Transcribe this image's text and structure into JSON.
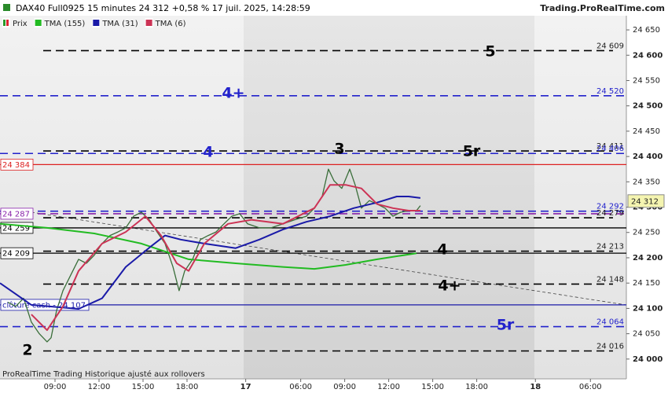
{
  "chart_data": {
    "type": "line",
    "title": "DAX40 Full0925 15 minutes 24 312 +0,58 % 17 juil. 2025, 14:28:59",
    "source": "Trading.ProRealTime.com",
    "footer": "ProRealTime Trading  Historique ajusté aux rollovers",
    "xlim": [
      5.25,
      47.95
    ],
    "ylim": [
      23964,
      24678
    ],
    "xticks": [
      {
        "value": 9,
        "label": "09:00"
      },
      {
        "value": 12,
        "label": "12:00"
      },
      {
        "value": 15,
        "label": "15:00"
      },
      {
        "value": 18,
        "label": "18:00"
      },
      {
        "value": 22,
        "label": "17"
      },
      {
        "value": 25.75,
        "label": "06:00"
      },
      {
        "value": 28.75,
        "label": "09:00"
      },
      {
        "value": 31.75,
        "label": "12:00"
      },
      {
        "value": 34.75,
        "label": "15:00"
      },
      {
        "value": 37.75,
        "label": "18:00"
      },
      {
        "value": 41.75,
        "label": "18"
      },
      {
        "value": 45.5,
        "label": "06:00"
      }
    ],
    "yticks": [
      {
        "value": 24000,
        "label": "24 000"
      },
      {
        "value": 24050,
        "label": "24 050"
      },
      {
        "value": 24100,
        "label": "24 100"
      },
      {
        "value": 24150,
        "label": "24 150"
      },
      {
        "value": 24200,
        "label": "24 200"
      },
      {
        "value": 24250,
        "label": "24 250"
      },
      {
        "value": 24300,
        "label": "24 300"
      },
      {
        "value": 24350,
        "label": "24 350"
      },
      {
        "value": 24400,
        "label": "24 400"
      },
      {
        "value": 24450,
        "label": "24 450"
      },
      {
        "value": 24500,
        "label": "24 500"
      },
      {
        "value": 24550,
        "label": "24 550"
      },
      {
        "value": 24600,
        "label": "24 600"
      },
      {
        "value": 24650,
        "label": "24 650"
      }
    ],
    "series": [
      {
        "name": "Prix",
        "color": "#3a6e3a",
        "x": [
          5.79,
          6.32,
          6.86,
          7.39,
          7.93,
          8.46,
          8.73,
          9.11,
          9.54,
          10.07,
          10.61,
          11.14,
          11.68,
          12.21,
          12.75,
          13.29,
          13.82,
          14.36,
          14.89,
          15.43,
          15.96,
          16.5,
          17.04,
          17.46,
          17.84,
          18.38,
          18.91,
          19.45,
          19.98,
          20.52,
          21.05,
          21.59,
          22.13,
          22.93,
          23.73,
          24.54,
          25.34,
          26.14,
          26.68,
          27.21,
          27.64,
          28.02,
          28.55,
          29.09,
          29.46,
          29.89,
          30.43,
          30.96,
          31.5,
          32.04,
          32.57,
          33.11,
          33.64,
          33.91
        ],
        "values": [
          24112,
          24104,
          24120,
          24073,
          24050,
          24034,
          24042,
          24096,
          24135,
          24166,
          24197,
          24189,
          24205,
          24228,
          24244,
          24251,
          24259,
          24282,
          24290,
          24275,
          24251,
          24228,
          24182,
          24135,
          24174,
          24197,
          24236,
          24244,
          24251,
          24267,
          24282,
          24287,
          24267,
          24259,
          24259,
          24267,
          24275,
          24282,
          24298,
          24321,
          24375,
          24352,
          24337,
          24375,
          24344,
          24298,
          24313,
          24306,
          24298,
          24282,
          24290,
          24293,
          24293,
          24303
        ]
      },
      {
        "name": "TMA (155)",
        "color": "#22bb22",
        "x": [
          5.25,
          8.46,
          11.68,
          14.89,
          18.11,
          21.32,
          24.54,
          26.68,
          28.82,
          30.96,
          33.64
        ],
        "values": [
          24267,
          24259,
          24248,
          24228,
          24197,
          24189,
          24182,
          24178,
          24186,
          24197,
          24209
        ]
      },
      {
        "name": "TMA (31)",
        "color": "#1a1aa8",
        "x": [
          5.25,
          7.39,
          10.61,
          12.21,
          13.82,
          15.43,
          16.5,
          17.57,
          19.18,
          21.32,
          22.93,
          24.54,
          26.14,
          27.75,
          29.36,
          30.96,
          32.3,
          33.11,
          33.91
        ],
        "values": [
          24150,
          24107,
          24099,
          24120,
          24182,
          24220,
          24244,
          24236,
          24228,
          24219,
          24236,
          24256,
          24271,
          24282,
          24298,
          24309,
          24321,
          24321,
          24318
        ]
      },
      {
        "name": "TMA (6)",
        "color": "#cc3355",
        "x": [
          7.39,
          8.46,
          9.54,
          10.61,
          12.21,
          13.82,
          15.16,
          16.23,
          17.3,
          18.11,
          19.18,
          20.79,
          22.39,
          24.54,
          26.68,
          27.75,
          28.82,
          29.89,
          30.96,
          32.04,
          33.11,
          33.91
        ],
        "values": [
          24088,
          24057,
          24104,
          24174,
          24228,
          24251,
          24282,
          24244,
          24189,
          24174,
          24228,
          24267,
          24275,
          24267,
          24298,
          24344,
          24344,
          24337,
          24306,
          24298,
          24293,
          24293
        ]
      }
    ],
    "levels": [
      {
        "value": 24609,
        "label": "24 609",
        "color": "#000000",
        "style": "dashed",
        "side": "right"
      },
      {
        "value": 24520,
        "label": "24 520",
        "color": "#2222cc",
        "style": "dashed",
        "side": "right"
      },
      {
        "value": 24411,
        "label": "24 411",
        "color": "#000000",
        "style": "dashed",
        "side": "right"
      },
      {
        "value": 24406,
        "label": "24 406",
        "color": "#2222cc",
        "style": "dashed",
        "side": "right"
      },
      {
        "value": 24384,
        "label": "24 384",
        "color": "#dd2222",
        "style": "solid",
        "side": "left"
      },
      {
        "value": 24292,
        "label": "24 292",
        "color": "#2222cc",
        "style": "dashed",
        "side": "right"
      },
      {
        "value": 24287,
        "label": "24 287",
        "color": "#8822aa",
        "style": "dashed",
        "side": "left"
      },
      {
        "value": 24279,
        "label": "24 279",
        "color": "#000000",
        "style": "dashed",
        "side": "right"
      },
      {
        "value": 24259,
        "label": "24 259",
        "color": "#000000",
        "style": "solid",
        "side": "left"
      },
      {
        "value": 24213,
        "label": "24 213",
        "color": "#000000",
        "style": "dashed",
        "side": "right"
      },
      {
        "value": 24209,
        "label": "24 209",
        "color": "#000000",
        "style": "solid",
        "side": "left"
      },
      {
        "value": 24148,
        "label": "24 148",
        "color": "#000000",
        "style": "dashed",
        "side": "right"
      },
      {
        "value": 24107,
        "label": "clôture cash -  24 107",
        "color": "#1a1aa8",
        "style": "solid",
        "side": "left"
      },
      {
        "value": 24064,
        "label": "24 064",
        "color": "#2222cc",
        "style": "dashed",
        "side": "right"
      },
      {
        "value": 24016,
        "label": "24 016",
        "color": "#000000",
        "style": "dashed",
        "side": "right"
      }
    ],
    "annotations": [
      {
        "text": "5",
        "color": "#000000"
      },
      {
        "text": "4+",
        "color": "#2222cc"
      },
      {
        "text": "4",
        "color": "#2222cc"
      },
      {
        "text": "3",
        "color": "#000000"
      },
      {
        "text": "5r",
        "color": "#000000"
      },
      {
        "text": "4",
        "color": "#000000"
      },
      {
        "text": "4+",
        "color": "#000000"
      },
      {
        "text": "5r",
        "color": "#2222cc"
      },
      {
        "text": "2",
        "color": "#000000"
      }
    ],
    "last_price": {
      "value": 24312,
      "label": "24 312"
    }
  }
}
